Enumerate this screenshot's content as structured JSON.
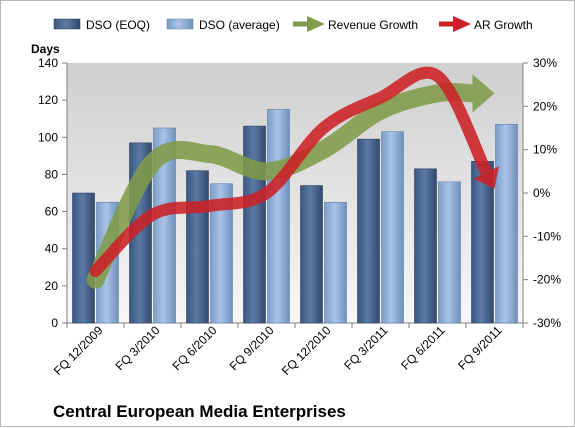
{
  "chart_data": {
    "type": "bar",
    "title": "Central European Media Enterprises",
    "ylabel": "Days",
    "ylim": [
      0,
      140
    ],
    "y_ticks": [
      "0",
      "20",
      "40",
      "60",
      "80",
      "100",
      "120",
      "140"
    ],
    "y2lim": [
      -30,
      30
    ],
    "y2_ticks": [
      "-30%",
      "-20%",
      "-10%",
      "0%",
      "10%",
      "20%",
      "30%"
    ],
    "categories": [
      "FQ 12/2009",
      "FQ 3/2010",
      "FQ 6/2010",
      "FQ 9/2010",
      "FQ 12/2010",
      "FQ 3/2011",
      "FQ 6/2011",
      "FQ 9/2011"
    ],
    "series": [
      {
        "name": "DSO (EOQ)",
        "kind": "bar",
        "axis": "left",
        "color": "#4a6a96",
        "values": [
          70,
          97,
          82,
          106,
          74,
          99,
          83,
          87
        ]
      },
      {
        "name": "DSO (average)",
        "kind": "bar",
        "axis": "left",
        "color": "#92b2da",
        "values": [
          65,
          105,
          75,
          115,
          65,
          103,
          76,
          107
        ]
      },
      {
        "name": "Revenue Growth",
        "kind": "arrow",
        "axis": "right",
        "color": "#7f9b49",
        "values": [
          -20,
          7,
          9,
          5,
          10,
          19,
          23,
          23
        ]
      },
      {
        "name": "AR Growth",
        "kind": "arrow",
        "axis": "right",
        "color": "#cc2026",
        "values": [
          -18,
          -5,
          -3,
          0,
          15,
          22,
          27,
          1
        ]
      }
    ],
    "legend_position": "top",
    "grid": false
  }
}
